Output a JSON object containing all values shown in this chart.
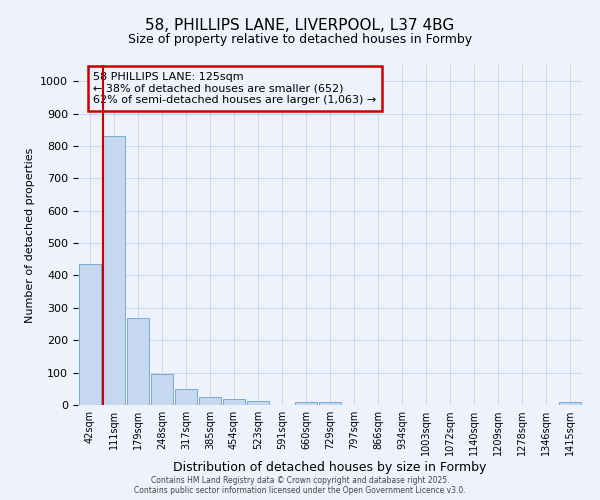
{
  "title1": "58, PHILLIPS LANE, LIVERPOOL, L37 4BG",
  "title2": "Size of property relative to detached houses in Formby",
  "xlabel": "Distribution of detached houses by size in Formby",
  "ylabel": "Number of detached properties",
  "bar_labels": [
    "42sqm",
    "111sqm",
    "179sqm",
    "248sqm",
    "317sqm",
    "385sqm",
    "454sqm",
    "523sqm",
    "591sqm",
    "660sqm",
    "729sqm",
    "797sqm",
    "866sqm",
    "934sqm",
    "1003sqm",
    "1072sqm",
    "1140sqm",
    "1209sqm",
    "1278sqm",
    "1346sqm",
    "1415sqm"
  ],
  "bar_values": [
    435,
    830,
    270,
    95,
    50,
    25,
    18,
    12,
    1,
    10,
    10,
    1,
    1,
    0,
    0,
    0,
    0,
    0,
    0,
    0,
    8
  ],
  "bar_color": "#c5d8f0",
  "bar_edge_color": "#7aaad0",
  "bg_color": "#eef2fb",
  "grid_color": "#c8d8f0",
  "vline_x": 0.55,
  "vline_color": "#cc0000",
  "ylim": [
    0,
    1050
  ],
  "yticks": [
    0,
    100,
    200,
    300,
    400,
    500,
    600,
    700,
    800,
    900,
    1000
  ],
  "annotation_title": "58 PHILLIPS LANE: 125sqm",
  "annotation_line2": "← 38% of detached houses are smaller (652)",
  "annotation_line3": "62% of semi-detached houses are larger (1,063) →",
  "annotation_box_color": "#cc0000",
  "footer1": "Contains HM Land Registry data © Crown copyright and database right 2025.",
  "footer2": "Contains public sector information licensed under the Open Government Licence v3.0."
}
